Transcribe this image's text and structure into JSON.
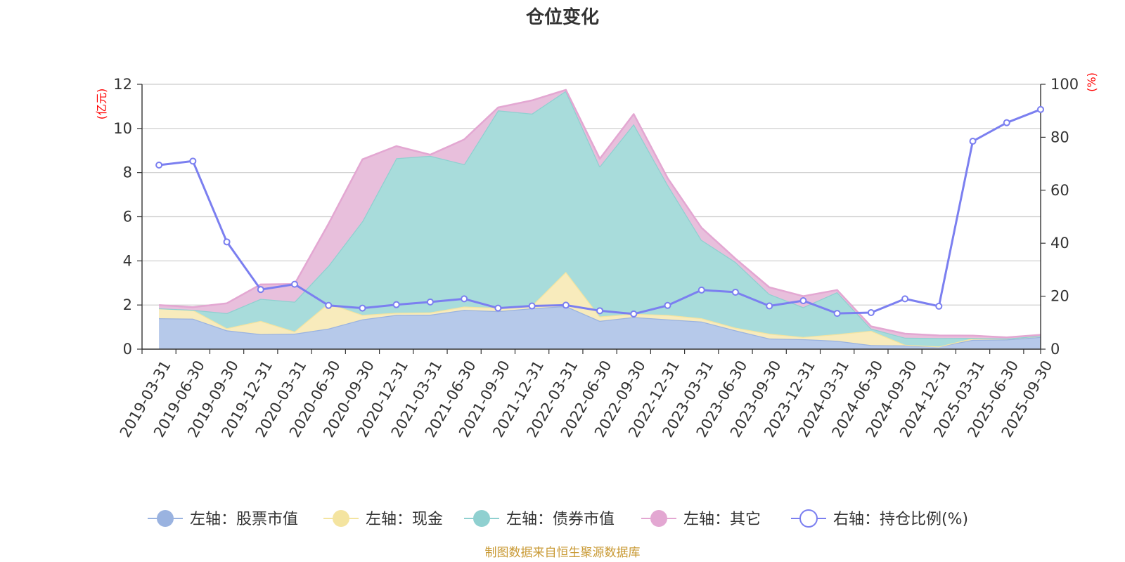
{
  "chart_data": {
    "type": "area",
    "title": "仓位变化",
    "left_axis": {
      "unit": "(亿元)",
      "ylim": [
        0,
        12
      ],
      "ticks": [
        "0",
        "2",
        "4",
        "6",
        "8",
        "10",
        "12"
      ],
      "color": "#ff0000"
    },
    "right_axis": {
      "unit": "(%)",
      "ylim": [
        0,
        100
      ],
      "ticks": [
        "0",
        "20",
        "40",
        "60",
        "80",
        "100"
      ],
      "color": "#ff0000"
    },
    "categories": [
      "2019-03-31",
      "2019-06-30",
      "2019-09-30",
      "2019-12-31",
      "2020-03-31",
      "2020-06-30",
      "2020-09-30",
      "2020-12-31",
      "2021-03-31",
      "2021-06-30",
      "2021-09-30",
      "2021-12-31",
      "2022-03-31",
      "2022-06-30",
      "2022-09-30",
      "2022-12-31",
      "2023-03-31",
      "2023-06-30",
      "2023-09-30",
      "2023-12-31",
      "2024-03-31",
      "2024-06-30",
      "2024-09-30",
      "2024-12-31",
      "2025-03-31",
      "2025-06-30",
      "2025-09-30"
    ],
    "series": [
      {
        "name": "左轴：股票市值",
        "axis": "left",
        "color": "#9ab3e0",
        "fill": "#b6c9ea",
        "values": [
          1.4,
          1.38,
          0.85,
          0.68,
          0.7,
          0.93,
          1.35,
          1.55,
          1.56,
          1.78,
          1.72,
          1.85,
          1.95,
          1.28,
          1.45,
          1.35,
          1.25,
          0.85,
          0.48,
          0.45,
          0.38,
          0.18,
          0.17,
          0.12,
          0.42,
          0.44,
          0.55
        ]
      },
      {
        "name": "左轴：现金",
        "axis": "left",
        "color": "#f4e4a0",
        "fill": "#f8ebbc",
        "values": [
          0.45,
          0.4,
          0.1,
          0.6,
          0.1,
          1.15,
          0.2,
          0.1,
          0.1,
          0.15,
          0.15,
          0.12,
          1.55,
          0.2,
          0.15,
          0.2,
          0.15,
          0.12,
          0.22,
          0.1,
          0.3,
          0.65,
          0.03,
          0.0,
          0.07,
          0.04,
          0.05
        ]
      },
      {
        "name": "左轴：债券市值",
        "axis": "left",
        "color": "#8fd0d0",
        "fill": "#a8dcdb",
        "values": [
          0.0,
          0.0,
          0.68,
          1.0,
          1.35,
          1.7,
          4.25,
          7.0,
          7.1,
          6.45,
          8.95,
          8.7,
          8.2,
          6.8,
          8.6,
          5.9,
          3.55,
          2.98,
          1.8,
          1.35,
          1.9,
          0.1,
          0.32,
          0.38,
          0.02,
          0.0,
          0.0
        ]
      },
      {
        "name": "左轴：其它",
        "axis": "left",
        "color": "#e3a7d2",
        "fill": "#e8bfdc",
        "values": [
          0.15,
          0.12,
          0.45,
          0.65,
          0.8,
          1.9,
          2.8,
          0.55,
          0.05,
          1.12,
          0.13,
          0.6,
          0.05,
          0.35,
          0.45,
          0.3,
          0.55,
          0.15,
          0.3,
          0.5,
          0.1,
          0.1,
          0.18,
          0.12,
          0.1,
          0.05,
          0.05
        ]
      },
      {
        "name": "右轴：持仓比例(%)",
        "axis": "right",
        "color": "#7b7ff0",
        "values": [
          69.5,
          71.0,
          40.5,
          22.5,
          24.5,
          16.5,
          15.5,
          16.8,
          17.8,
          19.0,
          15.5,
          16.3,
          16.6,
          14.5,
          13.3,
          16.5,
          22.3,
          21.5,
          16.3,
          18.3,
          13.5,
          13.8,
          19.0,
          16.2,
          78.5,
          85.5,
          90.5
        ]
      }
    ],
    "legend_position": "bottom",
    "grid": true
  },
  "source_note": "制图数据来自恒生聚源数据库",
  "colors": {
    "grid": "#cccccc",
    "axis": "#333333",
    "source": "#c99a35"
  }
}
